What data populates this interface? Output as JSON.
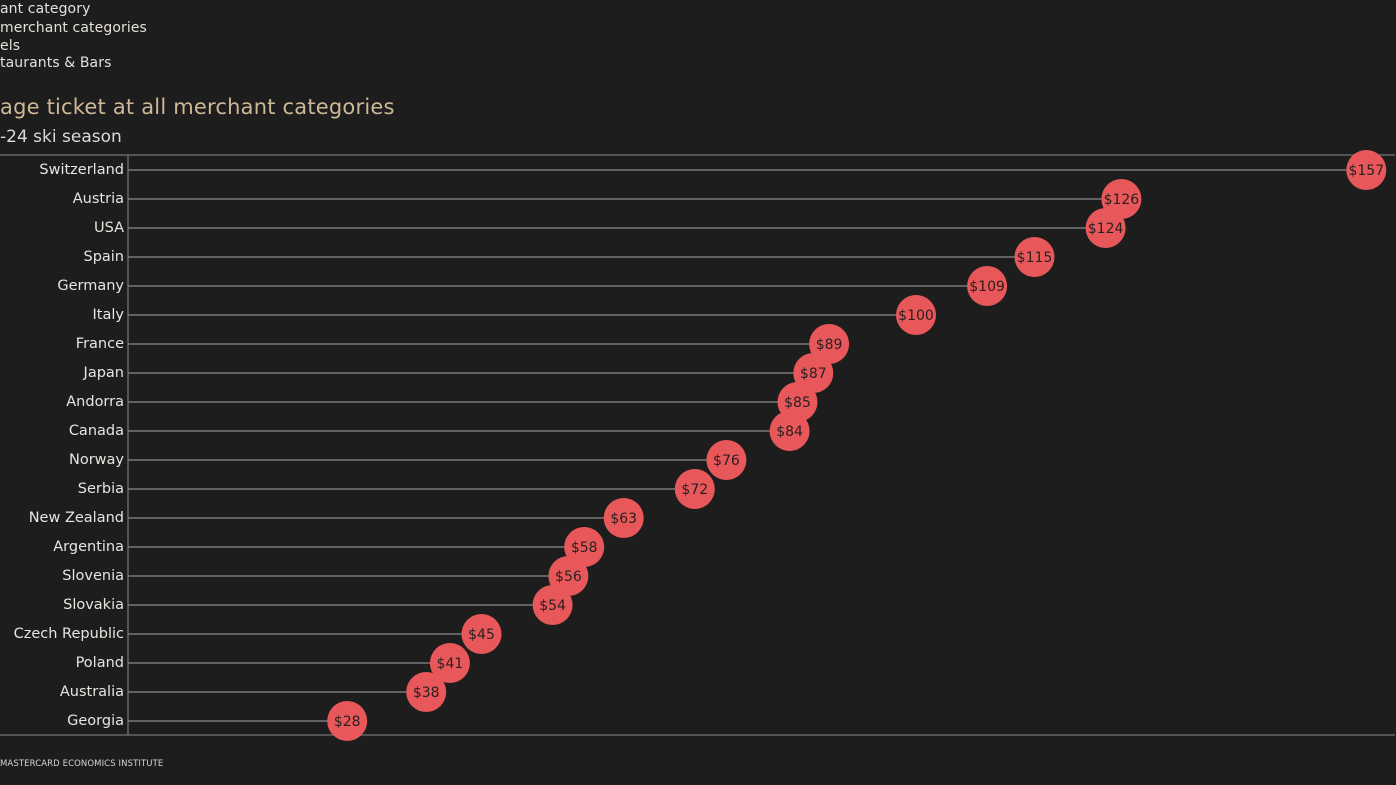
{
  "legend": {
    "items": [
      "ant category",
      "merchant categories",
      "els",
      "taurants & Bars"
    ]
  },
  "source": "MASTERCARD ECONOMICS INSTITUTE",
  "colors": {
    "background": "#1e1d1e",
    "dot": "#e8585a",
    "line": "#8a8a8a",
    "title": "#cdb897"
  },
  "chart_data": {
    "type": "dot",
    "title": "age ticket at all merchant categories",
    "subtitle": "-24 ski season",
    "xlim": [
      0,
      160
    ],
    "grid": false,
    "categories": [
      "Switzerland",
      "Austria",
      "USA",
      "Spain",
      "Germany",
      "Italy",
      "France",
      "Japan",
      "Andorra",
      "Canada",
      "Norway",
      "Serbia",
      "New Zealand",
      "Argentina",
      "Slovenia",
      "Slovakia",
      "Czech Republic",
      "Poland",
      "Australia",
      "Georgia"
    ],
    "values": [
      157,
      126,
      124,
      115,
      109,
      100,
      89,
      87,
      85,
      84,
      76,
      72,
      63,
      58,
      56,
      54,
      45,
      41,
      38,
      28
    ],
    "labels": [
      "$157",
      "$126",
      "$124",
      "$115",
      "$109",
      "$100",
      "$89",
      "$87",
      "$85",
      "$84",
      "$76",
      "$72",
      "$63",
      "$58",
      "$56",
      "$54",
      "$45",
      "$41",
      "$38",
      "$28"
    ]
  }
}
